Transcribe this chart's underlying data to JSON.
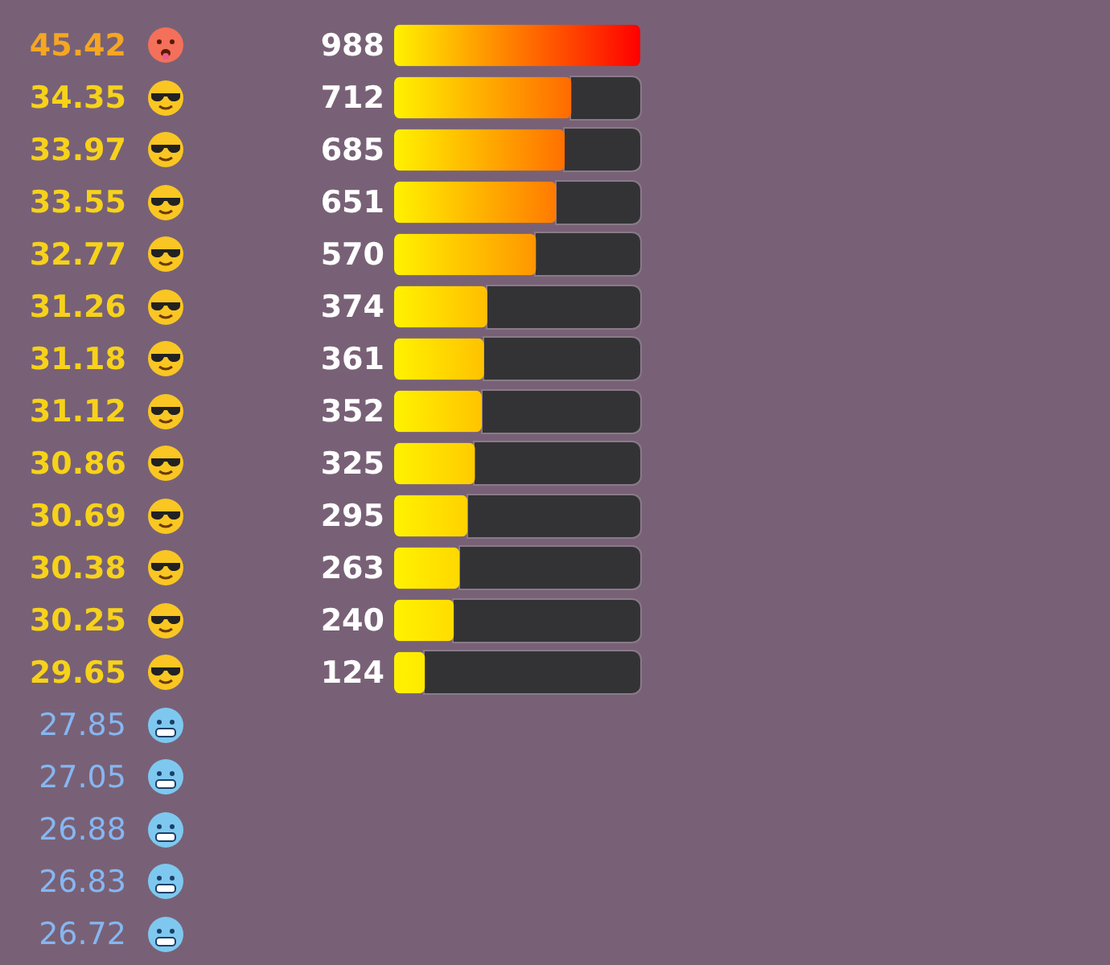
{
  "chart_data": {
    "type": "bar",
    "orientation": "horizontal",
    "data_labels": true,
    "categories": [
      "45.42",
      "34.35",
      "33.97",
      "33.55",
      "32.77",
      "31.26",
      "31.18",
      "31.12",
      "30.86",
      "30.69",
      "30.38",
      "30.25",
      "29.65",
      "27.85",
      "27.05",
      "26.88",
      "26.83",
      "26.72"
    ],
    "values": [
      988,
      712,
      685,
      651,
      570,
      374,
      361,
      352,
      325,
      295,
      263,
      240,
      124,
      null,
      null,
      null,
      null,
      null
    ],
    "colors": [
      "#ff0000",
      "#ff6a00",
      "#ff7000",
      "#ff7a00",
      "#ff9600",
      "#ffbe00",
      "#ffc200",
      "#ffc400",
      "#ffcb00",
      "#ffd200",
      "#ffd800",
      "#ffdc00",
      "#ffea00",
      null,
      null,
      null,
      null,
      null
    ]
  }
}
